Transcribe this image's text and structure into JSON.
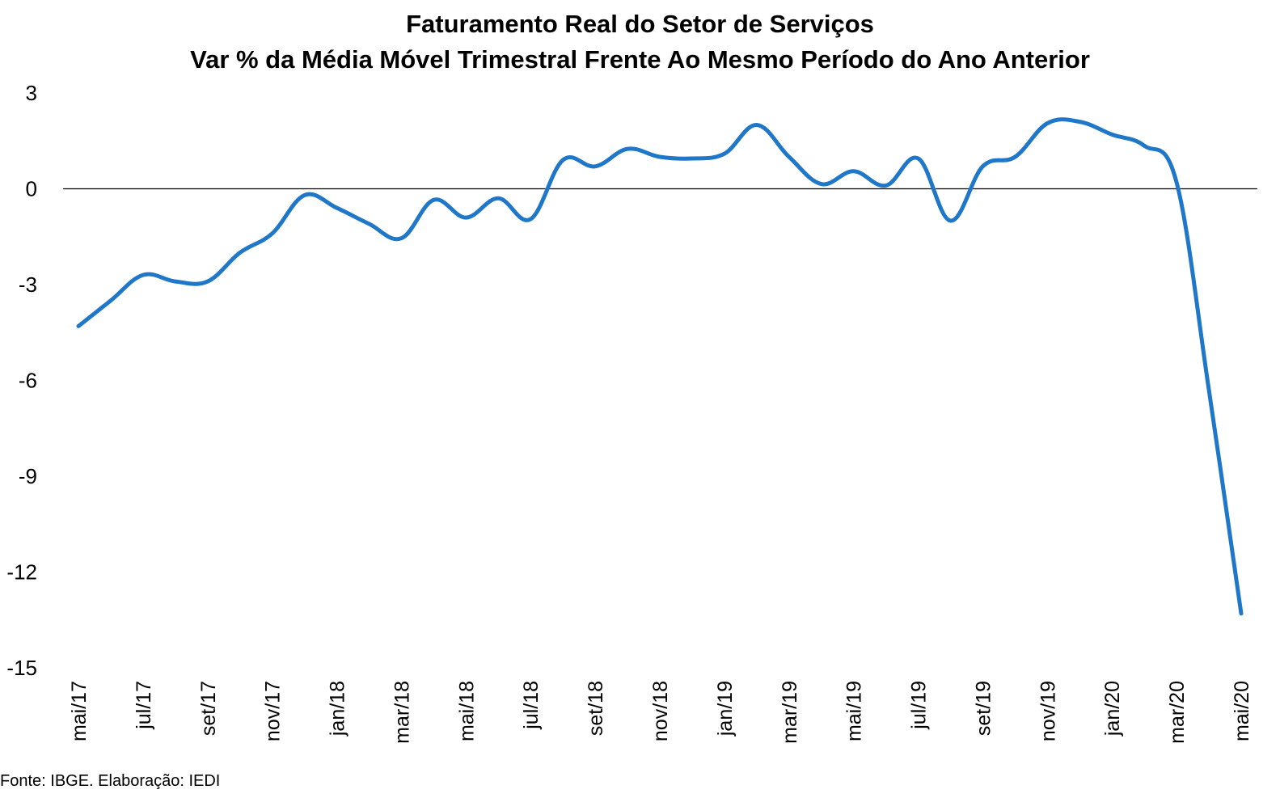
{
  "chart_data": {
    "type": "line",
    "title": "Faturamento Real do Setor de Serviços",
    "subtitle": "Var % da Média Móvel Trimestral Frente Ao Mesmo Período do Ano Anterior",
    "xlabel": "",
    "ylabel": "",
    "ylim": [
      -15,
      3
    ],
    "yticks": [
      "3",
      "0",
      "-3",
      "-6",
      "-9",
      "-12",
      "-15"
    ],
    "ytick_values": [
      3,
      0,
      -3,
      -6,
      -9,
      -12,
      -15
    ],
    "x_tick_labels": [
      "mai/17",
      "jul/17",
      "set/17",
      "nov/17",
      "jan/18",
      "mar/18",
      "mai/18",
      "jul/18",
      "set/18",
      "nov/18",
      "jan/19",
      "mar/19",
      "mai/19",
      "jul/19",
      "set/19",
      "nov/19",
      "jan/20",
      "mar/20",
      "mai/20"
    ],
    "x": [
      "mai/17",
      "jun/17",
      "jul/17",
      "ago/17",
      "set/17",
      "out/17",
      "nov/17",
      "dez/17",
      "jan/18",
      "fev/18",
      "mar/18",
      "abr/18",
      "mai/18",
      "jun/18",
      "jul/18",
      "ago/18",
      "set/18",
      "out/18",
      "nov/18",
      "dez/18",
      "jan/19",
      "fev/19",
      "mar/19",
      "abr/19",
      "mai/19",
      "jun/19",
      "jul/19",
      "ago/19",
      "set/19",
      "out/19",
      "nov/19",
      "dez/19",
      "jan/20",
      "fev/20",
      "mar/20",
      "abr/20",
      "mai/20"
    ],
    "series": [
      {
        "values": [
          -4.3,
          -3.5,
          -2.7,
          -2.9,
          -2.9,
          -2.0,
          -1.4,
          -0.2,
          -0.6,
          -1.1,
          -1.55,
          -0.35,
          -0.9,
          -0.3,
          -0.95,
          0.9,
          0.7,
          1.25,
          1.0,
          0.95,
          1.1,
          2.0,
          1.0,
          0.15,
          0.55,
          0.1,
          0.95,
          -1.0,
          0.7,
          1.0,
          2.05,
          2.1,
          1.7,
          1.35,
          0.2,
          -6.3,
          -13.3
        ],
        "color": "#1f77c9"
      }
    ],
    "grid": false,
    "legend": "none",
    "zero_line": true
  },
  "source_note": "Fonte: IBGE. Elaboração: IEDI"
}
